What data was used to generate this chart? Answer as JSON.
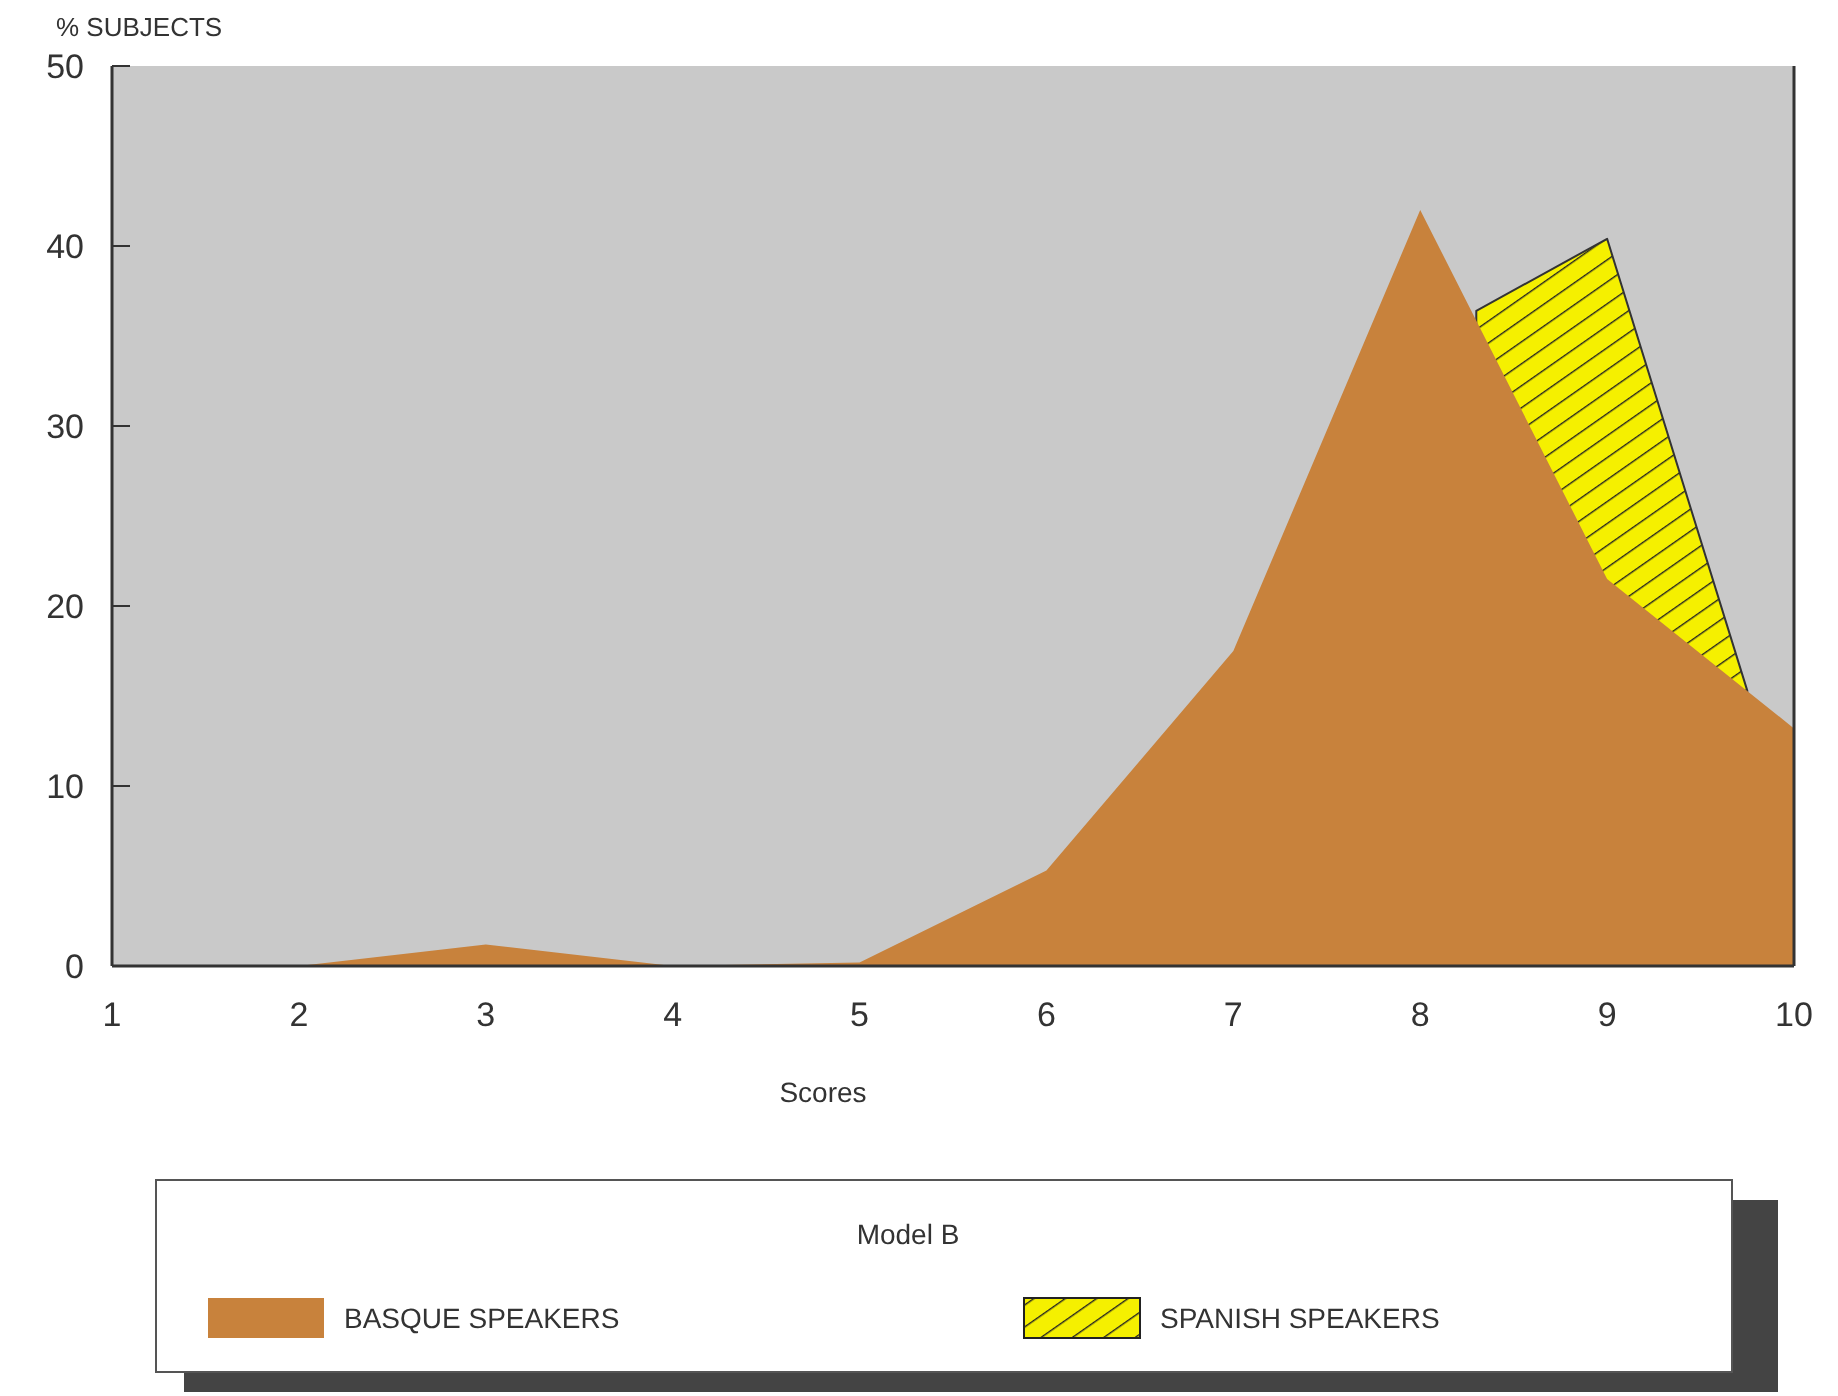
{
  "chart_data": {
    "type": "area",
    "ylabel": "% SUBJECTS",
    "xlabel": "Scores",
    "legend_title": "Model B",
    "legend": "bottom",
    "xlim": [
      1,
      10
    ],
    "xticks": [
      1,
      2,
      3,
      4,
      5,
      6,
      7,
      8,
      9,
      10
    ],
    "ylim": [
      0,
      50
    ],
    "yticks": [
      0,
      10,
      20,
      30,
      40,
      50
    ],
    "grid": false,
    "x": [
      1,
      2,
      3,
      4,
      5,
      6,
      7,
      8,
      9,
      10
    ],
    "series": [
      {
        "name": "SPANISH SPEAKERS",
        "color": "#f5f000",
        "x": [
          8.3,
          9,
          9.75
        ],
        "values": [
          36.4,
          40.4,
          15.3
        ]
      },
      {
        "name": "BASQUE SPEAKERS",
        "color": "#c8823c",
        "values": [
          0,
          0,
          1.2,
          0,
          0.2,
          5.3,
          17.5,
          42,
          21.5,
          13.2
        ]
      }
    ]
  }
}
